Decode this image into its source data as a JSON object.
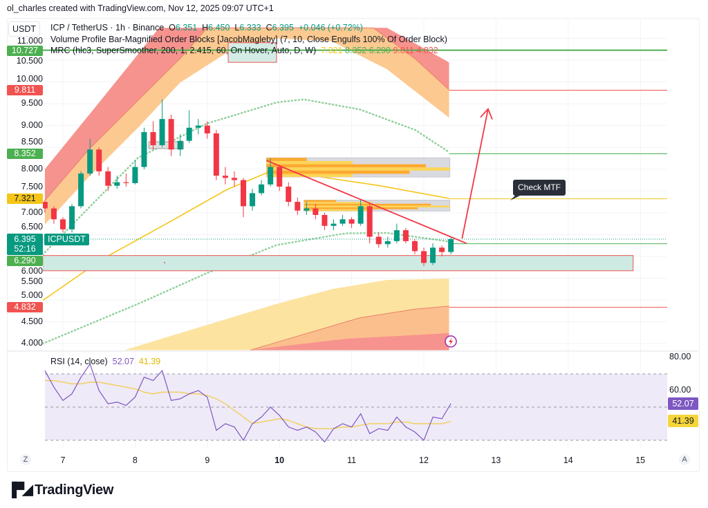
{
  "credit": "ol_charles created with TradingView.com, Nov 12, 2025 09:07 UTC+1",
  "header": {
    "currency": "USDT",
    "symbol": "ICP / TetherUS · 1h · Binance",
    "o_label": "O",
    "o": "6.351",
    "h_label": "H",
    "h": "6.450",
    "l_label": "L",
    "l": "6.333",
    "c_label": "C",
    "c": "6.395",
    "change": "+0.046 (+0.72%)",
    "indicator1": "Volume Profile Bar-Magnified Order Blocks [JacobMagleby] (7, 10, Close Engulfs 100% Of Order Block)",
    "indicator2": "MRC (hlc3, SuperSmoother, 200, 1, 2.415, 60, On Hover, Auto, D, W)",
    "mrc_values": [
      "7.321",
      "8.352",
      "6.290",
      "9.811",
      "4.832"
    ]
  },
  "colors": {
    "up": "#089981",
    "down": "#f23645",
    "green_level": "#4caf50",
    "red_level": "#f05350",
    "yellow": "#f5c518",
    "rsi": "#7e57c2",
    "rsi_ma": "#f0d060",
    "teal_zone": "#cdeae3"
  },
  "price_axis": [
    "11.000",
    "10.500",
    "10.000",
    "9.500",
    "9.000",
    "8.500",
    "8.000",
    "7.500",
    "7.000",
    "6.500",
    "6.000",
    "5.500",
    "5.000",
    "4.500",
    "4.000"
  ],
  "price_badges": [
    {
      "value": "10.727",
      "color": "#4caf50"
    },
    {
      "value": "9.811",
      "color": "#f05350"
    },
    {
      "value": "8.352",
      "color": "#4caf50"
    },
    {
      "value": "7.321",
      "color": "#f5c518"
    },
    {
      "value": "6.290",
      "color": "#4caf50"
    },
    {
      "value": "4.832",
      "color": "#f05350"
    }
  ],
  "last_price": {
    "value": "6.395",
    "countdown": "52:16",
    "ticker": "ICPUSDT"
  },
  "annotation": {
    "text": "Check MTF"
  },
  "rsi": {
    "label": "RSI (14, close)",
    "value": "52.07",
    "ma_value": "41.39",
    "axis": [
      "80.00",
      "60.00"
    ]
  },
  "date_axis": {
    "left_button": "Z",
    "right_button": "A",
    "labels": [
      "7",
      "8",
      "9",
      "10",
      "11",
      "12",
      "13",
      "14",
      "15"
    ],
    "bold": "10"
  },
  "logo": "TradingView",
  "chart_data": [
    {
      "type": "candlestick",
      "title": "ICP / TetherUS · 1h · Binance",
      "x_unit": "day of Nov 2025",
      "xlim": [
        6.72,
        15.4
      ],
      "ylim": [
        3.85,
        11.25
      ],
      "candle_fields": [
        "day",
        "open",
        "high",
        "low",
        "close"
      ],
      "candles": [
        [
          6.75,
          7.25,
          7.3,
          7.0,
          7.1
        ],
        [
          6.875,
          7.1,
          7.15,
          6.75,
          6.85
        ],
        [
          7.0,
          6.85,
          6.9,
          6.55,
          6.62
        ],
        [
          7.125,
          6.62,
          7.2,
          6.55,
          7.15
        ],
        [
          7.25,
          7.15,
          7.95,
          7.1,
          7.9
        ],
        [
          7.375,
          7.9,
          8.7,
          7.85,
          8.45
        ],
        [
          7.5,
          8.45,
          8.5,
          7.85,
          7.95
        ],
        [
          7.625,
          7.95,
          8.05,
          7.5,
          7.62
        ],
        [
          7.75,
          7.62,
          7.85,
          7.55,
          7.7
        ],
        [
          7.875,
          7.7,
          7.9,
          7.6,
          7.68
        ],
        [
          8.0,
          7.68,
          8.2,
          7.65,
          8.05
        ],
        [
          8.125,
          8.05,
          8.95,
          8.0,
          8.85
        ],
        [
          8.25,
          8.85,
          9.1,
          8.45,
          8.55
        ],
        [
          8.375,
          8.55,
          9.6,
          8.5,
          9.15
        ],
        [
          8.5,
          9.15,
          9.25,
          8.3,
          8.45
        ],
        [
          8.625,
          8.45,
          8.8,
          8.3,
          8.65
        ],
        [
          8.75,
          8.65,
          9.35,
          8.6,
          8.95
        ],
        [
          8.875,
          8.95,
          9.15,
          8.8,
          9.0
        ],
        [
          9.0,
          9.0,
          9.1,
          8.7,
          8.82
        ],
        [
          9.125,
          8.82,
          8.9,
          7.75,
          7.85
        ],
        [
          9.25,
          7.85,
          8.05,
          7.65,
          7.8
        ],
        [
          9.375,
          7.8,
          7.95,
          7.6,
          7.75
        ],
        [
          9.5,
          7.75,
          7.8,
          6.9,
          7.15
        ],
        [
          9.625,
          7.15,
          7.55,
          7.05,
          7.45
        ],
        [
          9.75,
          7.45,
          7.75,
          7.4,
          7.65
        ],
        [
          9.875,
          7.65,
          8.25,
          7.6,
          8.05
        ],
        [
          10.0,
          8.05,
          8.1,
          7.5,
          7.6
        ],
        [
          10.125,
          7.6,
          7.7,
          7.15,
          7.25
        ],
        [
          10.25,
          7.25,
          7.35,
          6.95,
          7.05
        ],
        [
          10.375,
          7.05,
          7.25,
          6.95,
          7.1
        ],
        [
          10.5,
          7.1,
          7.2,
          6.85,
          6.95
        ],
        [
          10.625,
          6.95,
          7.0,
          6.6,
          6.7
        ],
        [
          10.75,
          6.7,
          6.85,
          6.6,
          6.75
        ],
        [
          10.875,
          6.75,
          6.95,
          6.7,
          6.85
        ],
        [
          11.0,
          6.85,
          6.9,
          6.65,
          6.75
        ],
        [
          11.125,
          6.75,
          7.3,
          6.7,
          7.15
        ],
        [
          11.25,
          7.15,
          7.2,
          6.3,
          6.45
        ],
        [
          11.375,
          6.45,
          6.55,
          6.2,
          6.28
        ],
        [
          11.5,
          6.28,
          6.45,
          6.2,
          6.35
        ],
        [
          11.625,
          6.35,
          6.75,
          6.3,
          6.6
        ],
        [
          11.75,
          6.6,
          6.65,
          6.3,
          6.35
        ],
        [
          11.875,
          6.35,
          6.4,
          6.05,
          6.12
        ],
        [
          12.0,
          6.12,
          6.2,
          5.78,
          5.85
        ],
        [
          12.125,
          5.85,
          6.3,
          5.8,
          6.2
        ],
        [
          12.25,
          6.2,
          6.25,
          6.0,
          6.1
        ],
        [
          12.375,
          6.1,
          6.45,
          6.05,
          6.395
        ]
      ],
      "mrc": {
        "upper_outer": [
          [
            6.75,
            8.0
          ],
          [
            7.37,
            9.26
          ],
          [
            7.95,
            10.45
          ],
          [
            8.33,
            11.24
          ],
          [
            11.49,
            11.24
          ],
          [
            12.35,
            10.45
          ]
        ],
        "upper_mean": [
          [
            6.75,
            7.28
          ],
          [
            7.37,
            8.47
          ],
          [
            8.04,
            9.58
          ],
          [
            8.62,
            10.53
          ],
          [
            9.0,
            11.24
          ],
          [
            11.3,
            11.24
          ],
          [
            11.88,
            10.53
          ],
          [
            12.35,
            9.82
          ]
        ],
        "upper_inner": [
          [
            6.75,
            6.73
          ],
          [
            7.37,
            7.84
          ],
          [
            8.04,
            8.95
          ],
          [
            8.62,
            9.98
          ],
          [
            9.29,
            10.69
          ],
          [
            9.96,
            11.0
          ],
          [
            10.73,
            10.93
          ],
          [
            11.49,
            10.29
          ],
          [
            12.35,
            9.18
          ]
        ],
        "lower_inner": [
          [
            7.85,
            3.85
          ],
          [
            9.0,
            4.43
          ],
          [
            9.96,
            4.91
          ],
          [
            10.73,
            5.25
          ],
          [
            11.49,
            5.46
          ],
          [
            12.35,
            5.49
          ]
        ],
        "lower_mean": [
          [
            9.6,
            3.85
          ],
          [
            9.96,
            4.03
          ],
          [
            11.11,
            4.59
          ],
          [
            11.88,
            4.79
          ],
          [
            12.35,
            4.86
          ]
        ],
        "lower_outer": [
          [
            9.58,
            3.85
          ],
          [
            10.92,
            4.11
          ],
          [
            12.35,
            4.24
          ]
        ],
        "mean_line": [
          [
            6.72,
            4.99
          ],
          [
            7.55,
            5.94
          ],
          [
            8.5,
            6.81
          ],
          [
            9.27,
            7.53
          ],
          [
            9.8,
            7.9
          ],
          [
            10.42,
            7.86
          ],
          [
            11.39,
            7.62
          ],
          [
            12.35,
            7.33
          ]
        ],
        "upper_dotted": [
          [
            6.72,
            6.04
          ],
          [
            8.04,
            8.26
          ],
          [
            9.0,
            9.05
          ],
          [
            9.96,
            9.53
          ],
          [
            10.34,
            9.6
          ],
          [
            11.11,
            9.37
          ],
          [
            11.88,
            8.9
          ],
          [
            12.35,
            8.39
          ]
        ],
        "lower_dotted": [
          [
            6.72,
            4.0
          ],
          [
            8.04,
            4.91
          ],
          [
            9.0,
            5.62
          ],
          [
            9.96,
            6.26
          ],
          [
            10.92,
            6.53
          ],
          [
            11.49,
            6.54
          ],
          [
            12.35,
            6.34
          ]
        ]
      },
      "levels": [
        {
          "price": 10.727,
          "color": "#4caf50",
          "from": 6.72
        },
        {
          "price": 9.811,
          "color": "#f05350",
          "from": 12.35
        },
        {
          "price": 8.352,
          "color": "#4caf50",
          "from": 12.35
        },
        {
          "price": 7.321,
          "color": "#f5c518",
          "from": 12.35
        },
        {
          "price": 6.29,
          "color": "#4caf50",
          "from": 12.35
        },
        {
          "price": 4.832,
          "color": "#f05350",
          "from": 12.35
        }
      ],
      "order_blocks": [
        {
          "from": 9.82,
          "to": 12.36,
          "top": 8.26,
          "bottom": 7.82
        },
        {
          "from": 10.34,
          "to": 12.36,
          "top": 7.29,
          "bottom": 7.04
        }
      ],
      "small_boxes": [
        {
          "from": 9.29,
          "to": 9.96,
          "top": 10.9,
          "bottom": 10.45,
          "fill": "#d4ece6",
          "stroke": "#f05350"
        },
        {
          "from": 8.19,
          "to": 8.67,
          "top": 8.63,
          "bottom": 8.47,
          "fill": "#e0e0e0",
          "stroke": "#9e9e9e"
        }
      ],
      "zone": {
        "from": 6.72,
        "to": 14.9,
        "top": 6.02,
        "bottom": 5.67
      },
      "trendline": [
        [
          9.82,
          8.2
        ],
        [
          12.59,
          6.3
        ]
      ],
      "arrow": [
        [
          12.53,
          6.41
        ],
        [
          12.89,
          9.38
        ]
      ]
    },
    {
      "type": "line",
      "title": "RSI (14, close)",
      "ylim": [
        25,
        82
      ],
      "bands": [
        70,
        50,
        30
      ],
      "series": [
        {
          "name": "RSI",
          "values": [
            72,
            62,
            54,
            58,
            68,
            76,
            60,
            52,
            53,
            51,
            56,
            68,
            66,
            72,
            54,
            55,
            58,
            60,
            56,
            36,
            40,
            38,
            30,
            40,
            44,
            50,
            45,
            38,
            36,
            38,
            35,
            29,
            37,
            40,
            38,
            46,
            34,
            37,
            36,
            44,
            38,
            35,
            30,
            44,
            43,
            52.07
          ]
        },
        {
          "name": "RSI-based MA",
          "values": [
            66,
            66,
            65,
            64,
            64,
            65,
            65,
            64,
            63,
            62,
            61,
            59,
            58,
            59,
            59,
            59,
            58,
            58,
            57,
            55,
            52,
            48,
            44,
            40,
            41,
            42,
            43,
            42,
            40,
            38,
            37,
            37,
            37,
            38,
            38,
            39,
            40,
            40,
            40,
            41,
            41,
            40,
            40,
            40,
            40,
            41.39
          ]
        }
      ]
    }
  ]
}
